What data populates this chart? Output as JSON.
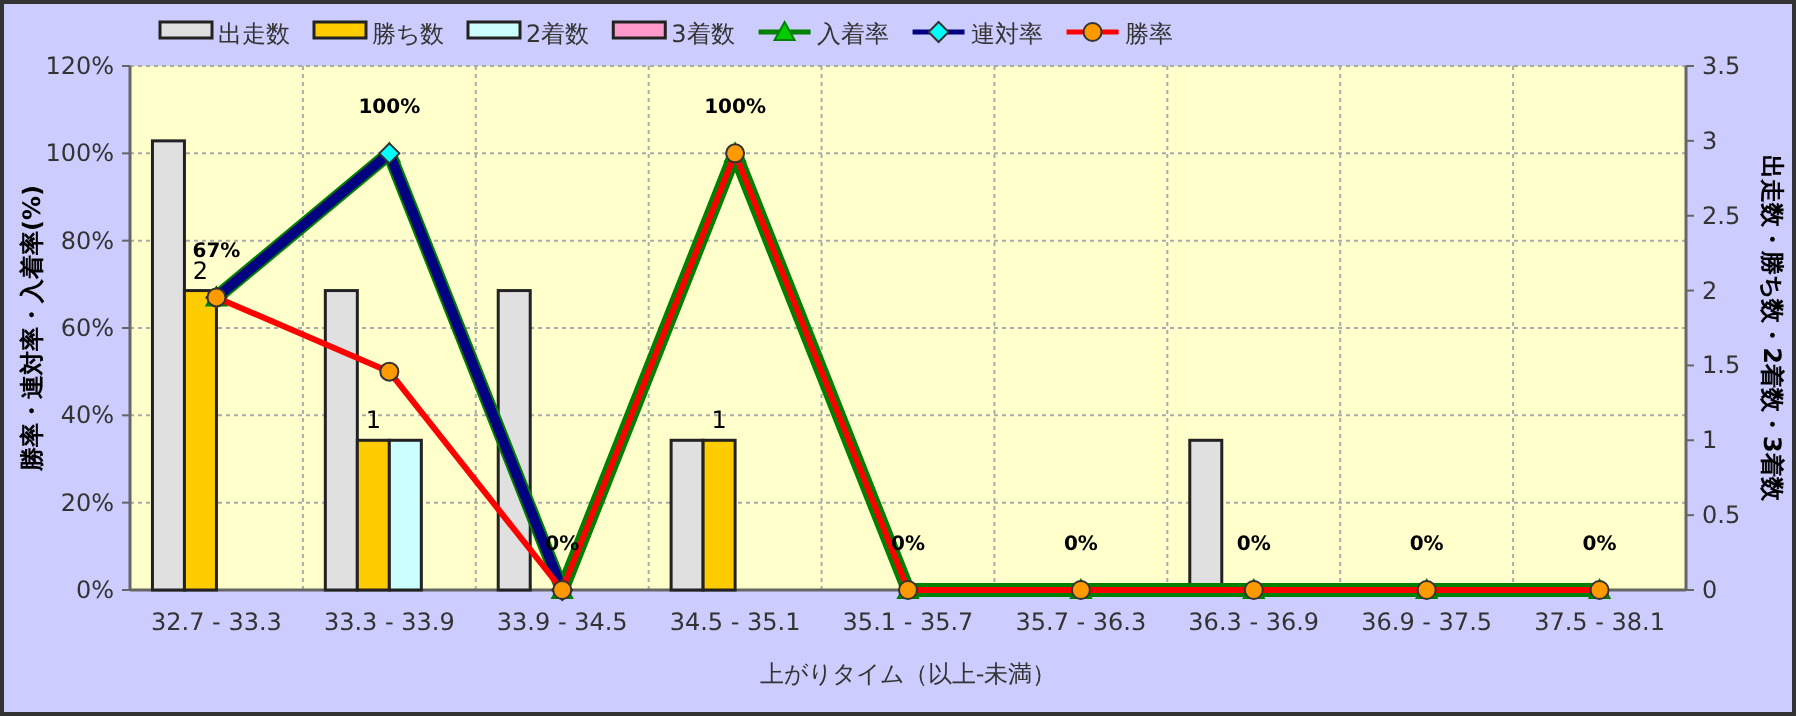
{
  "chart_data": {
    "type": "bar",
    "xlabel": "上がりタイム（以上-未満）",
    "ylabel": "勝率・連対率・入着率(%)",
    "y2label": "出走数・勝ち数・2着数・3着数",
    "categories": [
      "32.7 - 33.3",
      "33.3 - 33.9",
      "33.9 - 34.5",
      "34.5 - 35.1",
      "35.1 - 35.7",
      "35.7 - 36.3",
      "36.3 - 36.9",
      "36.9 - 37.5",
      "37.5 - 38.1"
    ],
    "series": [
      {
        "name": "出走数",
        "axis": "y2",
        "color": "#e0e0e0",
        "values": [
          3,
          2,
          2,
          1,
          0,
          0,
          1,
          0,
          0
        ]
      },
      {
        "name": "勝ち数",
        "axis": "y2",
        "color": "#ffcc00",
        "values": [
          2,
          1,
          0,
          1,
          0,
          0,
          0,
          0,
          0
        ],
        "value_labels": [
          "2",
          "1",
          null,
          "1",
          null,
          null,
          null,
          null,
          null
        ]
      },
      {
        "name": "2着数",
        "axis": "y2",
        "color": "#ccffff",
        "values": [
          0,
          1,
          0,
          0,
          0,
          0,
          0,
          0,
          0
        ]
      },
      {
        "name": "3着数",
        "axis": "y2",
        "color": "#ff99cc",
        "values": [
          0,
          0,
          0,
          0,
          0,
          0,
          0,
          0,
          0
        ]
      },
      {
        "name": "入着率",
        "type": "line",
        "marker": "triangle",
        "color": "#008000",
        "values": [
          67,
          100,
          0,
          100,
          0,
          0,
          0,
          0,
          0
        ],
        "value_labels": [
          "67%",
          "100%",
          "0%",
          "100%",
          "0%",
          "0%",
          "0%",
          "0%",
          "0%"
        ]
      },
      {
        "name": "連対率",
        "type": "line",
        "marker": "diamond",
        "color": "#000080",
        "values": [
          67,
          100,
          0,
          null,
          null,
          null,
          null,
          null,
          null
        ]
      },
      {
        "name": "勝率",
        "type": "line",
        "marker": "circle",
        "color": "#ff0000",
        "values": [
          67,
          50,
          0,
          100,
          0,
          0,
          0,
          0,
          0
        ]
      }
    ],
    "ylim": [
      0,
      120
    ],
    "yticks": [
      {
        "value": 0,
        "label": "0%"
      },
      {
        "value": 20,
        "label": "20%"
      },
      {
        "value": 40,
        "label": "40%"
      },
      {
        "value": 60,
        "label": "60%"
      },
      {
        "value": 80,
        "label": "80%"
      },
      {
        "value": 100,
        "label": "100%"
      },
      {
        "value": 120,
        "label": "120%"
      }
    ],
    "y2lim": [
      0,
      3.5
    ],
    "y2ticks": [
      0,
      0.5,
      1,
      1.5,
      2,
      2.5,
      3,
      3.5
    ],
    "grid": true,
    "legend": "top"
  }
}
